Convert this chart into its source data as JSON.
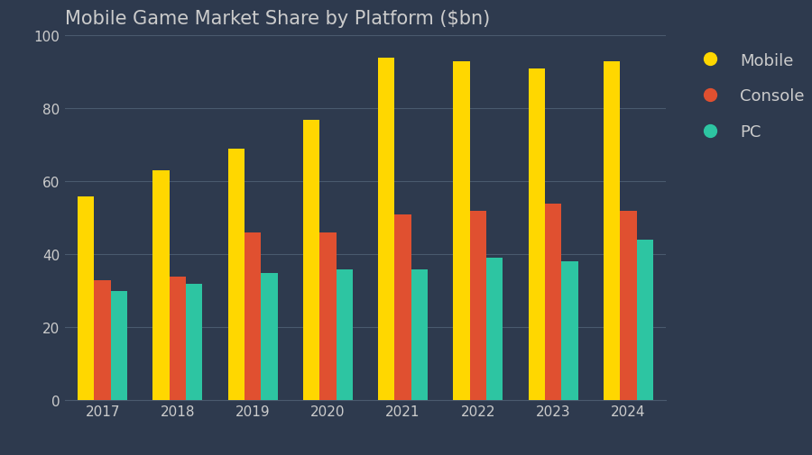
{
  "title": "Mobile Game Market Share by Platform ($bn)",
  "years": [
    2017,
    2018,
    2019,
    2020,
    2021,
    2022,
    2023,
    2024
  ],
  "mobile": [
    56,
    63,
    69,
    77,
    94,
    93,
    91,
    93
  ],
  "console": [
    33,
    34,
    46,
    46,
    51,
    52,
    54,
    52
  ],
  "pc": [
    30,
    32,
    35,
    36,
    36,
    39,
    38,
    44
  ],
  "colors": {
    "mobile": "#FFD700",
    "console": "#E05030",
    "pc": "#2DC5A2"
  },
  "background_color": "#2E3A4E",
  "text_color": "#CCCCCC",
  "grid_color": "#4A5A6E",
  "ylim": [
    0,
    100
  ],
  "yticks": [
    0,
    20,
    40,
    60,
    80,
    100
  ],
  "legend_labels": [
    "Mobile",
    "Console",
    "PC"
  ],
  "title_fontsize": 15,
  "tick_fontsize": 11,
  "legend_fontsize": 13,
  "bar_width": 0.22,
  "figsize": [
    9.0,
    5.06
  ],
  "dpi": 100
}
